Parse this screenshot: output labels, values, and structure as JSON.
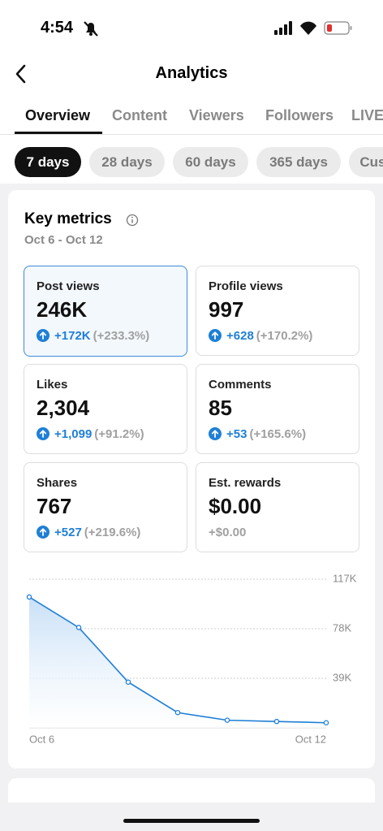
{
  "status_bar": {
    "time": "4:54"
  },
  "header": {
    "title": "Analytics"
  },
  "tabs": [
    "Overview",
    "Content",
    "Viewers",
    "Followers",
    "LIVE"
  ],
  "ranges": [
    "7 days",
    "28 days",
    "60 days",
    "365 days",
    "Custom"
  ],
  "key_metrics": {
    "title": "Key metrics",
    "date_range": "Oct 6 - Oct 12",
    "cards": [
      {
        "label": "Post views",
        "value": "246K",
        "change": "+172K",
        "percent": "(+233.3%)"
      },
      {
        "label": "Profile views",
        "value": "997",
        "change": "+628",
        "percent": "(+170.2%)"
      },
      {
        "label": "Likes",
        "value": "2,304",
        "change": "+1,099",
        "percent": "(+91.2%)"
      },
      {
        "label": "Comments",
        "value": "85",
        "change": "+53",
        "percent": "(+165.6%)"
      },
      {
        "label": "Shares",
        "value": "767",
        "change": "+527",
        "percent": "(+219.6%)"
      },
      {
        "label": "Est. rewards",
        "value": "$0.00",
        "change": "+$0.00"
      }
    ]
  },
  "chart_data": {
    "type": "line",
    "x": [
      "Oct 6",
      null,
      null,
      null,
      null,
      null,
      "Oct 12"
    ],
    "values": [
      103000,
      79000,
      36000,
      12000,
      6000,
      5000,
      4000
    ],
    "color": "#1f7fd6",
    "ylim": [
      0,
      117000
    ],
    "yticks": [
      {
        "value": 39000,
        "label": "39K"
      },
      {
        "value": 78000,
        "label": "78K"
      },
      {
        "value": 117000,
        "label": "117K"
      }
    ],
    "grid": true
  }
}
